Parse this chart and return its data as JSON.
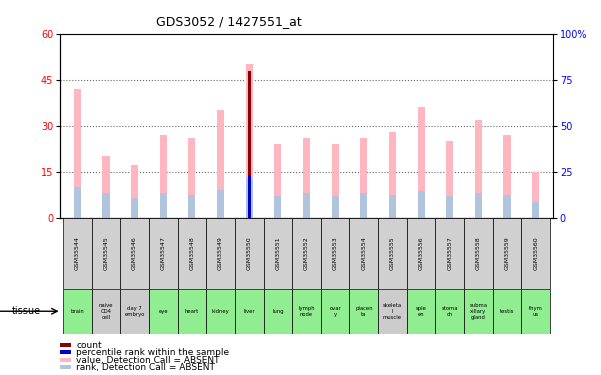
{
  "title": "GDS3052 / 1427551_at",
  "samples": [
    "GSM35544",
    "GSM35545",
    "GSM35546",
    "GSM35547",
    "GSM35548",
    "GSM35549",
    "GSM35550",
    "GSM35551",
    "GSM35552",
    "GSM35553",
    "GSM35554",
    "GSM35555",
    "GSM35556",
    "GSM35557",
    "GSM35558",
    "GSM35559",
    "GSM35560"
  ],
  "tissues": [
    "brain",
    "naive\nCD4\ncell",
    "day 7\nembryо",
    "eye",
    "heart",
    "kidney",
    "liver",
    "lung",
    "lymph\nnode",
    "ovar\ny",
    "placen\nta",
    "skeleta\nl\nmuscle",
    "sple\nen",
    "stoma\nch",
    "subma\nxillary\ngland",
    "testis",
    "thym\nus"
  ],
  "tissue_colors": [
    "#90EE90",
    "#cccccc",
    "#cccccc",
    "#90EE90",
    "#90EE90",
    "#90EE90",
    "#90EE90",
    "#90EE90",
    "#90EE90",
    "#90EE90",
    "#90EE90",
    "#cccccc",
    "#90EE90",
    "#90EE90",
    "#90EE90",
    "#90EE90",
    "#90EE90"
  ],
  "value_bars": [
    42,
    20,
    17,
    27,
    26,
    35,
    50,
    24,
    26,
    24,
    26,
    28,
    36,
    25,
    32,
    27,
    15
  ],
  "rank_bars": [
    10,
    8,
    6.5,
    8,
    7.5,
    9,
    13,
    7,
    8,
    7,
    8,
    7.5,
    8.5,
    7,
    8,
    7.5,
    5
  ],
  "count_val": 48,
  "count_idx": 6,
  "percentile_val": 14,
  "percentile_idx": 6,
  "ylim_left": [
    0,
    60
  ],
  "ylim_right": [
    0,
    100
  ],
  "yticks_left": [
    0,
    15,
    30,
    45,
    60
  ],
  "yticks_right": [
    0,
    25,
    50,
    75,
    100
  ],
  "color_count": "#8B0000",
  "color_percentile": "#0000CD",
  "color_value": "#FFB6C1",
  "color_rank": "#B0C4DE",
  "bar_width": 0.25,
  "background_color": "#ffffff"
}
